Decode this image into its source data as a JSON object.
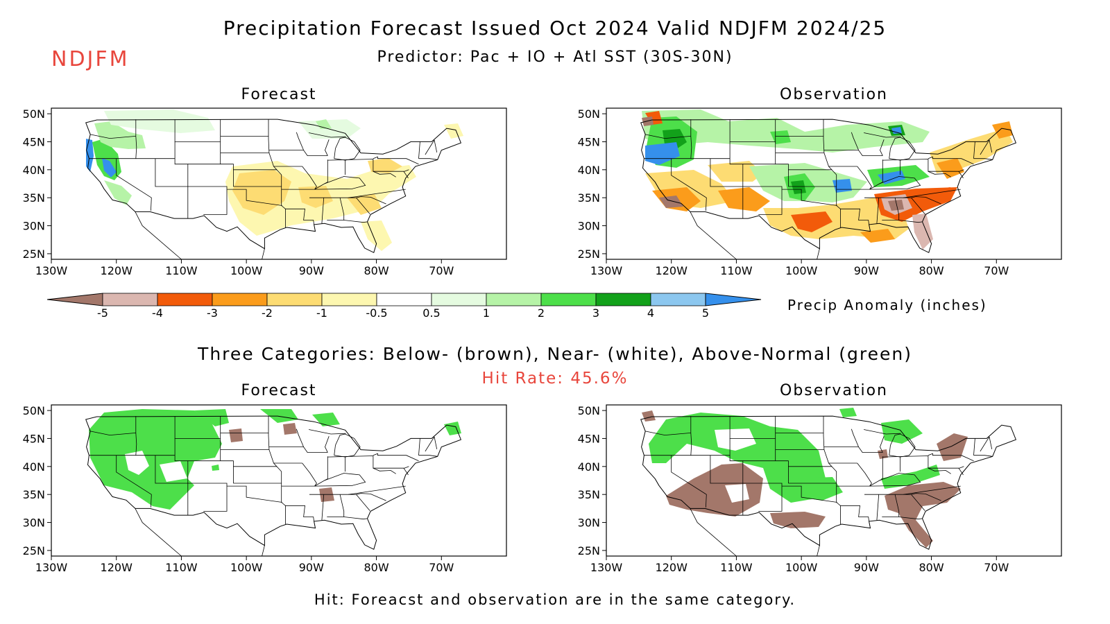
{
  "title": "Precipitation Forecast Issued Oct 2024 Valid NDJFM 2024/25",
  "season": "NDJFM",
  "predictor": "Predictor: Pac + IO + Atl SST (30S-30N)",
  "panels": {
    "top_forecast": "Forecast",
    "top_observation": "Observation",
    "bottom_forecast": "Forecast",
    "bottom_observation": "Observation"
  },
  "axes": {
    "lat_labels": [
      "50N",
      "45N",
      "40N",
      "35N",
      "30N",
      "25N"
    ],
    "lon_labels": [
      "130W",
      "120W",
      "110W",
      "100W",
      "90W",
      "80W",
      "70W"
    ]
  },
  "legend": {
    "title": "Precip Anomaly (inches)",
    "tick_labels": [
      "-5",
      "-4",
      "-3",
      "-2",
      "-1",
      "-0.5",
      "0.5",
      "1",
      "2",
      "3",
      "4",
      "5"
    ],
    "colors": [
      "#a3776a",
      "#dbb7b0",
      "#f25b0a",
      "#fb9c1b",
      "#fddc73",
      "#fdf7b0",
      "#ffffff",
      "#e5fbe0",
      "#b6f3a7",
      "#4ddf4a",
      "#12a11a",
      "#8cc7ef",
      "#3590ec"
    ]
  },
  "categories_title": "Three Categories: Below- (brown), Near- (white), Above-Normal (green)",
  "hit_rate": "Hit Rate: 45.6%",
  "footer": "Hit: Foreacst and observation are in the same category.",
  "category_colors": {
    "below": "#a3776a",
    "near": "#ffffff",
    "above": "#4ddf4a"
  }
}
